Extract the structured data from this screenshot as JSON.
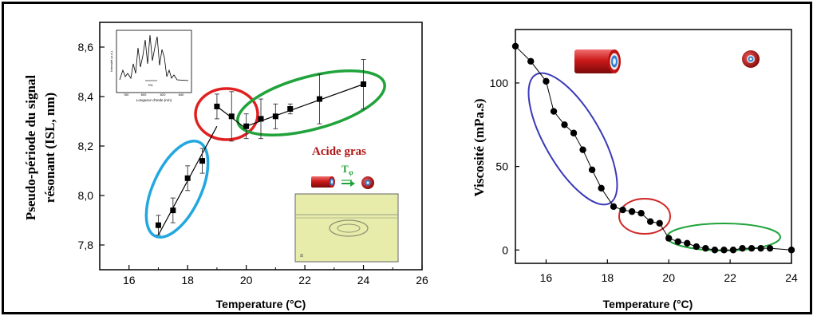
{
  "charts": {
    "left": {
      "ylabel_line1": "Pseudo-période du signal",
      "ylabel_line2": "résonant (ISL, nm)",
      "xlabel": "Temperature (°C)",
      "legend_text": "Acide gras",
      "legend_symbol": "T",
      "legend_symbol_sub": "φ",
      "inset": {
        "ylabel": "Intensité (u.a.)",
        "xlabel": "Longueur d'onde (nm)",
        "xticks": [
          "780",
          "800",
          "820",
          "840"
        ],
        "marker_label": "ISL"
      },
      "micrograph_label": "a"
    },
    "right": {
      "ylabel": "Viscosité (mPa.s)",
      "xlabel": "Temperature (°C)"
    }
  },
  "chart_data": [
    {
      "type": "scatter",
      "xlim": [
        15,
        26
      ],
      "ylim": [
        7.7,
        8.7
      ],
      "xticks": [
        16,
        18,
        20,
        22,
        24,
        26
      ],
      "yticks": [
        7.8,
        8.0,
        8.2,
        8.4,
        8.6
      ],
      "tick_decimal": ",",
      "series": [
        {
          "x": [
            17.0,
            17.5,
            18.0,
            18.5,
            19.0,
            19.5,
            20.0,
            20.5,
            21.0,
            21.5,
            22.5,
            24.0
          ],
          "y": [
            7.88,
            7.94,
            8.07,
            8.14,
            8.36,
            8.32,
            8.28,
            8.31,
            8.32,
            8.35,
            8.39,
            8.45
          ],
          "err": [
            0.04,
            0.05,
            0.05,
            0.05,
            0.05,
            0.1,
            0.05,
            0.08,
            0.05,
            0.02,
            0.1,
            0.1
          ]
        }
      ],
      "fit_lines": [
        {
          "x": [
            17.0,
            19.0
          ],
          "y": [
            7.84,
            8.28
          ]
        },
        {
          "x": [
            19.0,
            20.0
          ],
          "y": [
            8.36,
            8.27
          ]
        },
        {
          "x": [
            20.0,
            24.0
          ],
          "y": [
            8.28,
            8.45
          ]
        }
      ],
      "highlight_ellipses": [
        "#22a7e0",
        "#e02020",
        "#1fa33a"
      ]
    },
    {
      "type": "line",
      "xlim": [
        15,
        24
      ],
      "ylim": [
        -8,
        132
      ],
      "xticks": [
        16,
        18,
        20,
        22,
        24
      ],
      "yticks": [
        0,
        50,
        100
      ],
      "series": [
        {
          "x": [
            15.0,
            15.5,
            16.0,
            16.25,
            16.6,
            16.9,
            17.2,
            17.5,
            17.8,
            18.2,
            18.5,
            18.8,
            19.1,
            19.4,
            19.7,
            20.0,
            20.3,
            20.6,
            20.9,
            21.2,
            21.5,
            21.8,
            22.1,
            22.4,
            22.7,
            23.0,
            23.3,
            24.0
          ],
          "y": [
            122,
            113,
            101,
            83,
            75,
            70,
            60,
            48,
            37,
            26,
            24,
            23,
            22,
            17,
            16,
            7,
            5,
            4,
            2,
            1,
            0,
            0,
            0,
            1,
            1,
            1,
            1,
            0
          ]
        }
      ],
      "highlight_ellipses": [
        "#3a3ab8",
        "#d02828",
        "#1fa33a"
      ]
    }
  ]
}
